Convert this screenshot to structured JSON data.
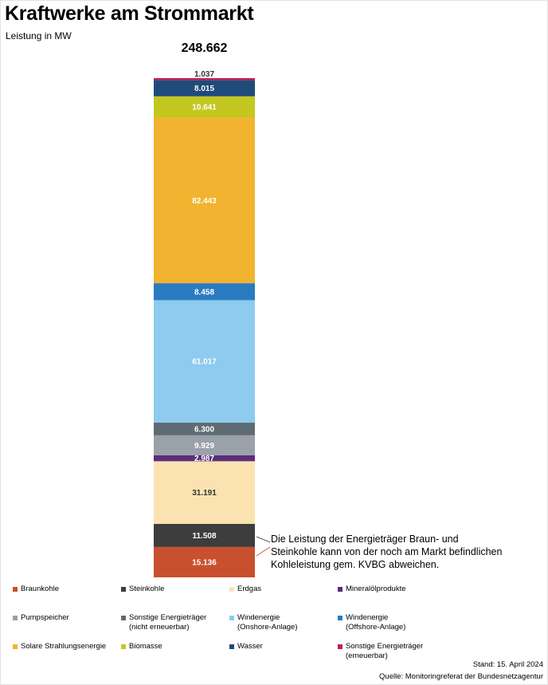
{
  "chart_data": {
    "type": "bar",
    "title": "Kraftwerke am Strommarkt",
    "subtitle": "Leistung in MW",
    "total_label": "248.662",
    "total": 248662,
    "stacked": true,
    "categories": [
      ""
    ],
    "series": [
      {
        "name": "Braunkohle",
        "value": 15136,
        "label": "15.136",
        "color": "#c9502f",
        "text_color": "#ffffff"
      },
      {
        "name": "Steinkohle",
        "value": 11508,
        "label": "11.508",
        "color": "#3d3d3d",
        "text_color": "#ffffff"
      },
      {
        "name": "Erdgas",
        "value": 31191,
        "label": "31.191",
        "color": "#fae3b0",
        "text_color": "#333333"
      },
      {
        "name": "Mineralölprodukte",
        "value": 2987,
        "label": "2.987",
        "color": "#5b2d7a",
        "text_color": "#ffffff"
      },
      {
        "name": "Pumpspeicher",
        "value": 9929,
        "label": "9.929",
        "color": "#9aa1a8",
        "text_color": "#ffffff"
      },
      {
        "name": "Sonstige Energieträger\n(nicht erneuerbar)",
        "value": 6300,
        "label": "6.300",
        "color": "#5f6b73",
        "text_color": "#ffffff"
      },
      {
        "name": "Windenergie\n(Onshore-Anlage)",
        "value": 61017,
        "label": "61.017",
        "color": "#8ecbee",
        "text_color": "#ffffff"
      },
      {
        "name": "Windenergie\n(Offshore-Anlage)",
        "value": 8458,
        "label": "8.458",
        "color": "#2a7bc0",
        "text_color": "#ffffff"
      },
      {
        "name": "Solare Strahlungsenergie",
        "value": 82443,
        "label": "82.443",
        "color": "#f2b330",
        "text_color": "#ffffff"
      },
      {
        "name": "Biomasse",
        "value": 10641,
        "label": "10.641",
        "color": "#c3c71f",
        "text_color": "#ffffff"
      },
      {
        "name": "Wasser",
        "value": 8015,
        "label": "8.015",
        "color": "#1d4b7a",
        "text_color": "#ffffff"
      },
      {
        "name": "Sonstige Energieträger\n(erneuerbar)",
        "value": 1037,
        "label": "1.037",
        "color": "#c01e5a",
        "text_color": "#333333"
      }
    ],
    "annotation": "Die Leistung der Energieträger Braun- und\nSteinkohle kann von der noch am Markt befindlichen\nKohleleistung gem. KVBG abweichen.",
    "legend": "bottom",
    "grid": false
  },
  "footer": {
    "stand": "Stand: 15. April 2024",
    "quelle": "Quelle: Monitoringreferat der  Bundesnetzagentur"
  }
}
